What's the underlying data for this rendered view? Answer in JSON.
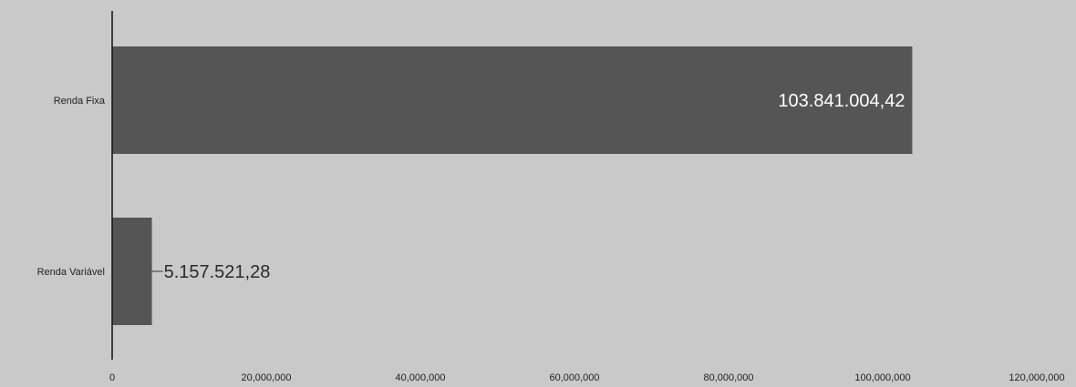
{
  "chart_data": {
    "type": "bar",
    "orientation": "horizontal",
    "title": "",
    "xlabel": "",
    "ylabel": "",
    "categories": [
      "Renda Fixa",
      "Renda Variável"
    ],
    "values": [
      103841004.42,
      5157521.28
    ],
    "value_labels": [
      "103.841.004,42",
      "5.157.521,28"
    ],
    "xlim": [
      0,
      120000000
    ],
    "x_ticks": [
      0,
      20000000,
      40000000,
      60000000,
      80000000,
      100000000,
      120000000
    ],
    "x_tick_labels": [
      "0",
      "20,000,000",
      "40,000,000",
      "60,000,000",
      "80,000,000",
      "100,000,000",
      "120,000,000"
    ],
    "grid": false,
    "legend": "none",
    "bar_color": "#555555",
    "axis_color": "#111111"
  }
}
